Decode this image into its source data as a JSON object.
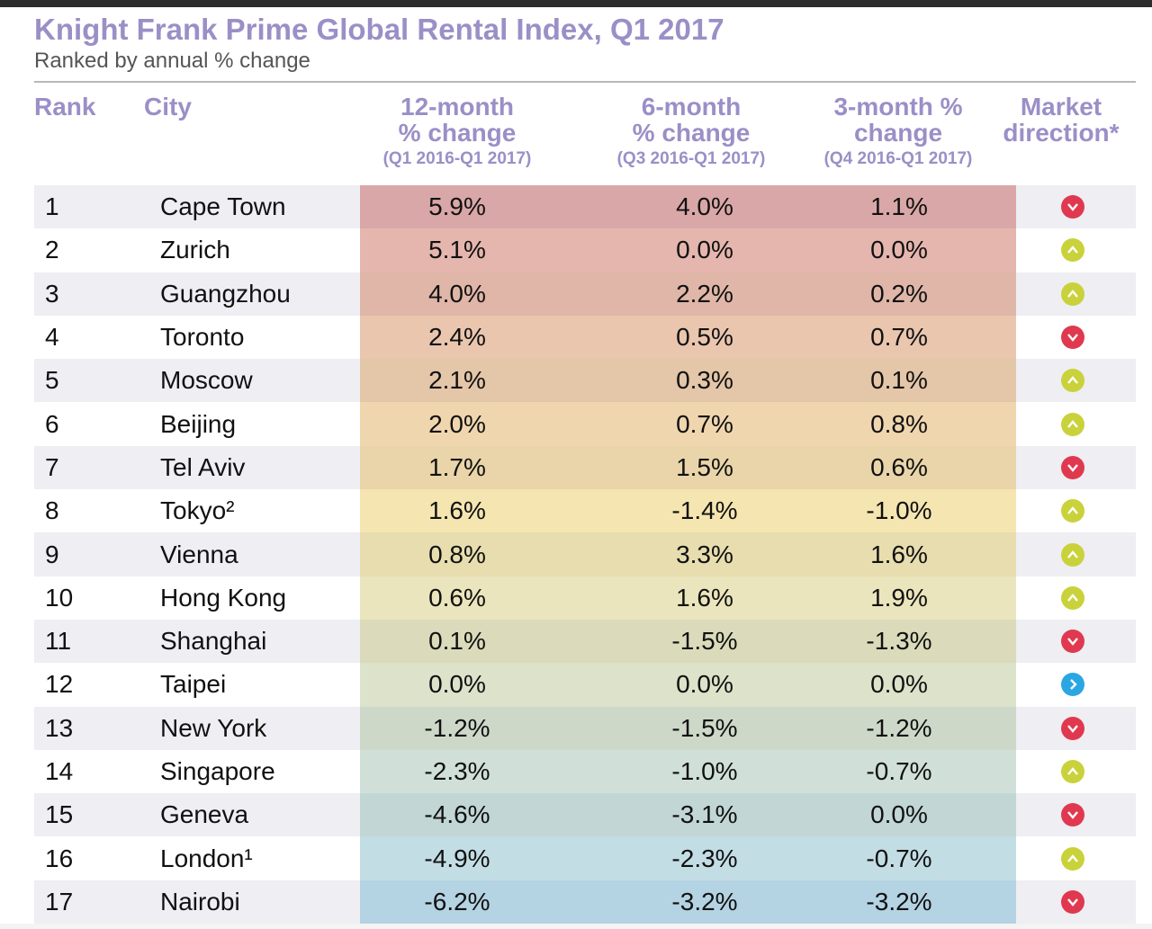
{
  "title": "Knight Frank Prime Global Rental Index, Q1 2017",
  "subtitle": "Ranked by annual % change",
  "headers": {
    "rank": "Rank",
    "city": "City",
    "col12": "12-month",
    "col12b": "% change",
    "col12sub": "(Q1 2016-Q1 2017)",
    "col6": "6-month",
    "col6b": "% change",
    "col6sub": "(Q3 2016-Q1 2017)",
    "col3": "3-month %",
    "col3b": "change",
    "col3sub": "(Q4 2016-Q1 2017)",
    "market": "Market",
    "marketb": "direction*"
  },
  "colors": {
    "title": "#9b8fc7",
    "heat_top": "#e2aeae",
    "heat_mid": "#f6e7b0",
    "heat_bottom": "#bcdcec",
    "down": "#e0394f",
    "up": "#c9d23a",
    "flat": "#2aa7e3"
  },
  "chart_data": {
    "type": "table",
    "columns": [
      "Rank",
      "City",
      "12-month % change",
      "6-month % change",
      "3-month % change",
      "Market direction*"
    ],
    "rows": [
      {
        "rank": "1",
        "city": "Cape Town",
        "m12": "5.9%",
        "m6": "4.0%",
        "m3": "1.1%",
        "dir": "down"
      },
      {
        "rank": "2",
        "city": "Zurich",
        "m12": "5.1%",
        "m6": "0.0%",
        "m3": "0.0%",
        "dir": "up"
      },
      {
        "rank": "3",
        "city": "Guangzhou",
        "m12": "4.0%",
        "m6": "2.2%",
        "m3": "0.2%",
        "dir": "up"
      },
      {
        "rank": "4",
        "city": "Toronto",
        "m12": "2.4%",
        "m6": "0.5%",
        "m3": "0.7%",
        "dir": "down"
      },
      {
        "rank": "5",
        "city": "Moscow",
        "m12": "2.1%",
        "m6": "0.3%",
        "m3": "0.1%",
        "dir": "up"
      },
      {
        "rank": "6",
        "city": "Beijing",
        "m12": "2.0%",
        "m6": "0.7%",
        "m3": "0.8%",
        "dir": "up"
      },
      {
        "rank": "7",
        "city": "Tel Aviv",
        "m12": "1.7%",
        "m6": "1.5%",
        "m3": "0.6%",
        "dir": "down"
      },
      {
        "rank": "8",
        "city": "Tokyo²",
        "m12": "1.6%",
        "m6": "-1.4%",
        "m3": "-1.0%",
        "dir": "up"
      },
      {
        "rank": "9",
        "city": "Vienna",
        "m12": "0.8%",
        "m6": "3.3%",
        "m3": "1.6%",
        "dir": "up"
      },
      {
        "rank": "10",
        "city": "Hong Kong",
        "m12": "0.6%",
        "m6": "1.6%",
        "m3": "1.9%",
        "dir": "up"
      },
      {
        "rank": "11",
        "city": "Shanghai",
        "m12": "0.1%",
        "m6": "-1.5%",
        "m3": "-1.3%",
        "dir": "down"
      },
      {
        "rank": "12",
        "city": "Taipei",
        "m12": "0.0%",
        "m6": "0.0%",
        "m3": "0.0%",
        "dir": "flat"
      },
      {
        "rank": "13",
        "city": "New York",
        "m12": "-1.2%",
        "m6": "-1.5%",
        "m3": "-1.2%",
        "dir": "down"
      },
      {
        "rank": "14",
        "city": "Singapore",
        "m12": "-2.3%",
        "m6": "-1.0%",
        "m3": "-0.7%",
        "dir": "up"
      },
      {
        "rank": "15",
        "city": "Geneva",
        "m12": "-4.6%",
        "m6": "-3.1%",
        "m3": "0.0%",
        "dir": "down"
      },
      {
        "rank": "16",
        "city": "London¹",
        "m12": "-4.9%",
        "m6": "-2.3%",
        "m3": "-0.7%",
        "dir": "up"
      },
      {
        "rank": "17",
        "city": "Nairobi",
        "m12": "-6.2%",
        "m6": "-3.2%",
        "m3": "-3.2%",
        "dir": "down"
      }
    ]
  }
}
